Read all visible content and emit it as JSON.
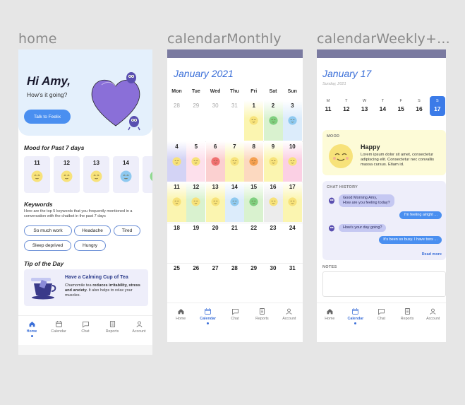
{
  "frames": {
    "home": "home",
    "monthly": "calendarMonthly",
    "weekly": "calendarWeekly+..."
  },
  "home": {
    "greeting": "Hi Amy,",
    "subtitle": "How's it going?",
    "cta": "Talk to Feelix",
    "mood_title": "Mood for Past 7 days",
    "mood_days": [
      {
        "day": "11",
        "color": "#f7e27a"
      },
      {
        "day": "12",
        "color": "#f7e27a"
      },
      {
        "day": "13",
        "color": "#f7e27a"
      },
      {
        "day": "14",
        "color": "#8ec9f0"
      },
      {
        "day": "15",
        "color": "#8fd98f"
      }
    ],
    "keywords_title": "Keywords",
    "keywords_desc": "Here are the top 5 keywords that you frequently mentioned in a conversation with the chatbot in the past 7 days",
    "keywords": [
      "So much work",
      "Headache",
      "Tired",
      "Sleep deprived",
      "Hungry"
    ],
    "tip_title_section": "Tip of the Day",
    "tip": {
      "title": "Have a Calming Cup of Tea",
      "body_pre": "Chamomile tea ",
      "body_bold": "reduces irritability, stress and anxiety.",
      "body_post": " It also helps to relax your muscles."
    }
  },
  "nav": {
    "items": [
      {
        "label": "Home",
        "icon": "home-icon"
      },
      {
        "label": "Calendar",
        "icon": "calendar-icon"
      },
      {
        "label": "Chat",
        "icon": "chat-icon"
      },
      {
        "label": "Reports",
        "icon": "reports-icon"
      },
      {
        "label": "Account",
        "icon": "account-icon"
      }
    ]
  },
  "monthly": {
    "title": "January 2021",
    "weekdays": [
      "Mon",
      "Tue",
      "Wed",
      "Thu",
      "Fri",
      "Sat",
      "Sun"
    ],
    "weeks": [
      [
        {
          "n": "28",
          "m": true
        },
        {
          "n": "29",
          "m": true
        },
        {
          "n": "30",
          "m": true
        },
        {
          "n": "31",
          "m": true
        },
        {
          "n": "1",
          "c": "#fbf5b0",
          "f": "#f7e27a"
        },
        {
          "n": "2",
          "c": "#d9f2cf",
          "f": "#7fcf7f"
        },
        {
          "n": "3",
          "c": "#dcecfb",
          "f": "#8ec9f0"
        }
      ],
      [
        {
          "n": "4",
          "c": "#d3d3f5",
          "f": "#f7e27a"
        },
        {
          "n": "5",
          "c": "#fde0ec",
          "f": "#f7e27a"
        },
        {
          "n": "6",
          "c": "#fbd0d0",
          "f": "#f07070"
        },
        {
          "n": "7",
          "c": "#fbf5b0",
          "f": "#f7e27a"
        },
        {
          "n": "8",
          "c": "#fcd9c0",
          "f": "#f5a050"
        },
        {
          "n": "9",
          "c": "#fbf5b0",
          "f": "#f7e27a"
        },
        {
          "n": "10",
          "c": "#fbd0e4",
          "f": "#f7e27a"
        }
      ],
      [
        {
          "n": "11",
          "c": "#fbf5b0",
          "f": "#f7e27a"
        },
        {
          "n": "12",
          "c": "#d9f2cf",
          "f": "#f7e27a"
        },
        {
          "n": "13",
          "c": "#fbf5b0",
          "f": "#f7e27a"
        },
        {
          "n": "14",
          "c": "#dcecfb",
          "f": "#8ec9f0"
        },
        {
          "n": "15",
          "c": "#d9f2cf",
          "f": "#7fcf7f"
        },
        {
          "n": "16",
          "c": "#ececec",
          "f": "#f7e27a"
        },
        {
          "n": "17",
          "c": "#fbf5b0",
          "f": "#f7e27a"
        }
      ],
      [
        {
          "n": "18"
        },
        {
          "n": "19"
        },
        {
          "n": "20"
        },
        {
          "n": "21"
        },
        {
          "n": "22"
        },
        {
          "n": "23"
        },
        {
          "n": "24"
        }
      ],
      [
        {
          "n": "25"
        },
        {
          "n": "26"
        },
        {
          "n": "27"
        },
        {
          "n": "28"
        },
        {
          "n": "29"
        },
        {
          "n": "30"
        },
        {
          "n": "31"
        }
      ]
    ]
  },
  "weekly": {
    "title": "January 17",
    "subtitle": "Sunday, 2021",
    "days": [
      {
        "l": "M",
        "n": "11"
      },
      {
        "l": "T",
        "n": "12"
      },
      {
        "l": "W",
        "n": "13"
      },
      {
        "l": "T",
        "n": "14"
      },
      {
        "l": "F",
        "n": "15"
      },
      {
        "l": "S",
        "n": "16"
      },
      {
        "l": "S",
        "n": "17",
        "sel": true
      }
    ],
    "mood_label": "MOOD",
    "mood_name": "Happy",
    "mood_text": "Lorem ipsum dolor sit amet, consectetur adipiscing elit. Consectetur nec convallis massa cursus. Etiam id.",
    "chat_label": "CHAT HISTORY",
    "chat": [
      {
        "from": "bot",
        "text": "Good Morning Amy,\nHow are you feeling today?"
      },
      {
        "from": "user",
        "text": "I'm feeling alright ..."
      },
      {
        "from": "bot",
        "text": "How's your day going?"
      },
      {
        "from": "user",
        "text": "It's been so busy. I have tons ..."
      }
    ],
    "read_more": "Read more",
    "notes_label": "NOTES",
    "notes_value": ""
  },
  "colors": {
    "accent": "#3b6fd8",
    "button": "#4a8ff0",
    "heart": "#8a6fd8"
  }
}
